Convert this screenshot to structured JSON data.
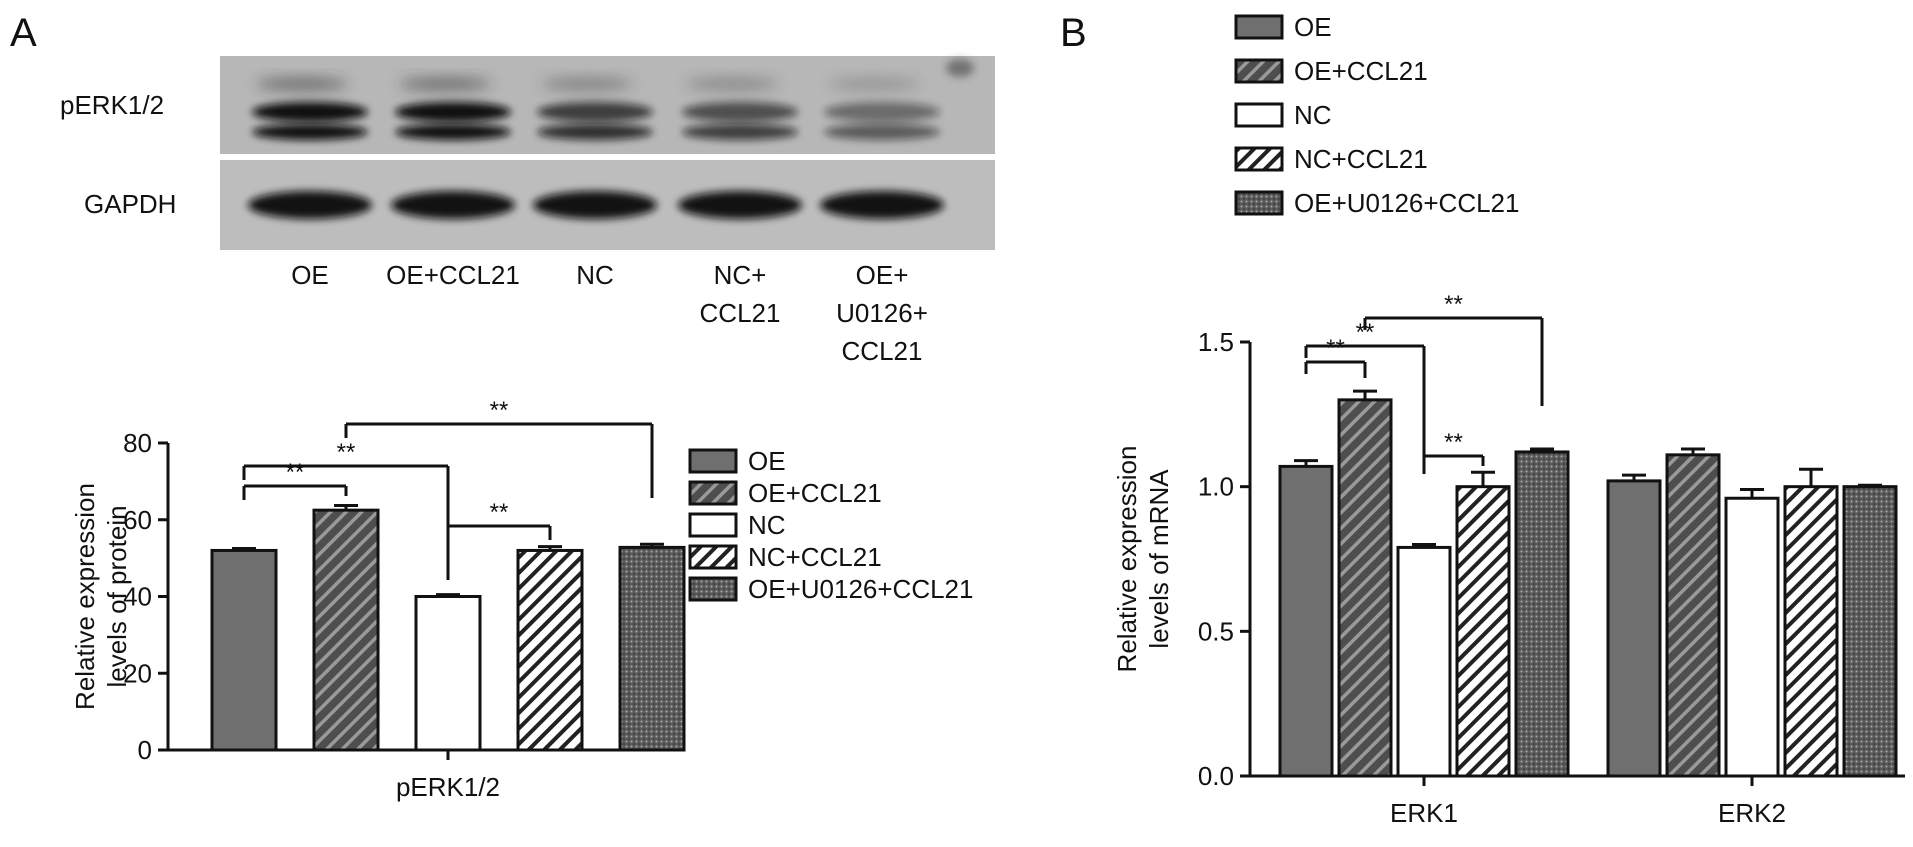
{
  "panels": {
    "a_label": "A",
    "b_label": "B"
  },
  "blot": {
    "row_labels": [
      "pERK1/2",
      "GAPDH"
    ],
    "lanes": [
      [
        "OE"
      ],
      [
        "OE+CCL21"
      ],
      [
        "NC"
      ],
      [
        "NC+",
        "CCL21"
      ],
      [
        "OE+",
        "U0126+",
        "CCL21"
      ]
    ],
    "perk_intensity": [
      1.0,
      1.0,
      0.72,
      0.62,
      0.45
    ]
  },
  "significance_marker": "**",
  "chart_data": [
    {
      "type": "bar",
      "panel": "A",
      "categories": [
        "pERK1/2"
      ],
      "series": [
        {
          "name": "OE",
          "values": [
            52
          ],
          "errors": [
            0.5
          ]
        },
        {
          "name": "OE+CCL21",
          "values": [
            62.5
          ],
          "errors": [
            1.2
          ]
        },
        {
          "name": "NC",
          "values": [
            40
          ],
          "errors": [
            0.5
          ]
        },
        {
          "name": "NC+CCL21",
          "values": [
            52
          ],
          "errors": [
            1.0
          ]
        },
        {
          "name": "OE+U0126+CCL21",
          "values": [
            52.8
          ],
          "errors": [
            0.8
          ]
        }
      ],
      "ylabel": [
        "Relative expression",
        "levels of protein"
      ],
      "ylim": [
        0,
        80
      ],
      "yticks": [
        "0",
        "20",
        "40",
        "60",
        "80"
      ],
      "legend": [
        "OE",
        "OE+CCL21",
        "NC",
        "NC+CCL21",
        "OE+U0126+CCL21"
      ],
      "legend_position": "right",
      "grid": false,
      "comparisons": [
        {
          "from": 0,
          "to": 1,
          "label": "**"
        },
        {
          "from": 0,
          "to": 2,
          "label": "**"
        },
        {
          "from": 1,
          "to": 4,
          "label": "**"
        },
        {
          "from": 2,
          "to": 3,
          "label": "**"
        }
      ]
    },
    {
      "type": "bar",
      "panel": "B",
      "categories": [
        "ERK1",
        "ERK2"
      ],
      "series": [
        {
          "name": "OE",
          "values": [
            1.07,
            1.02
          ],
          "errors": [
            0.02,
            0.02
          ]
        },
        {
          "name": "OE+CCL21",
          "values": [
            1.3,
            1.11
          ],
          "errors": [
            0.03,
            0.02
          ]
        },
        {
          "name": "NC",
          "values": [
            0.79,
            0.96
          ],
          "errors": [
            0.01,
            0.03
          ]
        },
        {
          "name": "NC+CCL21",
          "values": [
            1.0,
            1.0
          ],
          "errors": [
            0.05,
            0.06
          ]
        },
        {
          "name": "OE+U0126+CCL21",
          "values": [
            1.12,
            1.0
          ],
          "errors": [
            0.01,
            0.005
          ]
        }
      ],
      "ylabel": [
        "Relative expression",
        "levels of mRNA"
      ],
      "ylim": [
        0,
        1.5
      ],
      "yticks": [
        "0.0",
        "0.5",
        "1.0",
        "1.5"
      ],
      "legend": [
        "OE",
        "OE+CCL21",
        "NC",
        "NC+CCL21",
        "OE+U0126+CCL21"
      ],
      "legend_position": "top",
      "grid": false,
      "comparisons": [
        {
          "group": 0,
          "from": 0,
          "to": 1,
          "label": "**"
        },
        {
          "group": 0,
          "from": 0,
          "to": 2,
          "label": "**"
        },
        {
          "group": 0,
          "from": 1,
          "to": 4,
          "label": "**"
        },
        {
          "group": 0,
          "from": 2,
          "to": 3,
          "label": "**"
        }
      ]
    }
  ]
}
